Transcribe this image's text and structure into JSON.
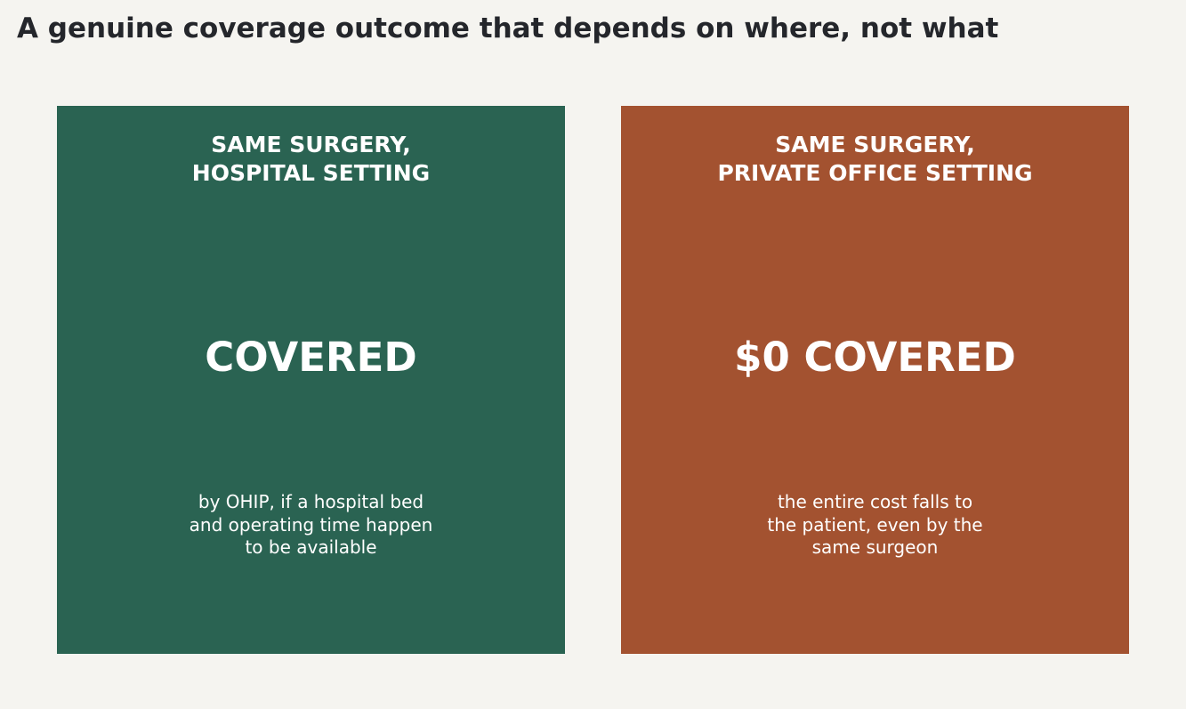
{
  "title": "A genuine coverage outcome that depends on where, not what",
  "colors": {
    "background": "#f5f4f0",
    "title_text": "#24262b",
    "hospital_panel": "#2a6352",
    "office_panel": "#a35230",
    "panel_text": "#ffffff"
  },
  "panels": [
    {
      "heading_lines": [
        "SAME SURGERY,",
        "HOSPITAL SETTING"
      ],
      "outcome": "COVERED",
      "detail_lines": [
        "by OHIP, if a hospital bed",
        "and operating time happen",
        "to be available"
      ]
    },
    {
      "heading_lines": [
        "SAME SURGERY,",
        "PRIVATE OFFICE SETTING"
      ],
      "outcome": "$0 COVERED",
      "detail_lines": [
        "the entire cost falls to",
        "the patient, even by the",
        "same surgeon"
      ]
    }
  ]
}
